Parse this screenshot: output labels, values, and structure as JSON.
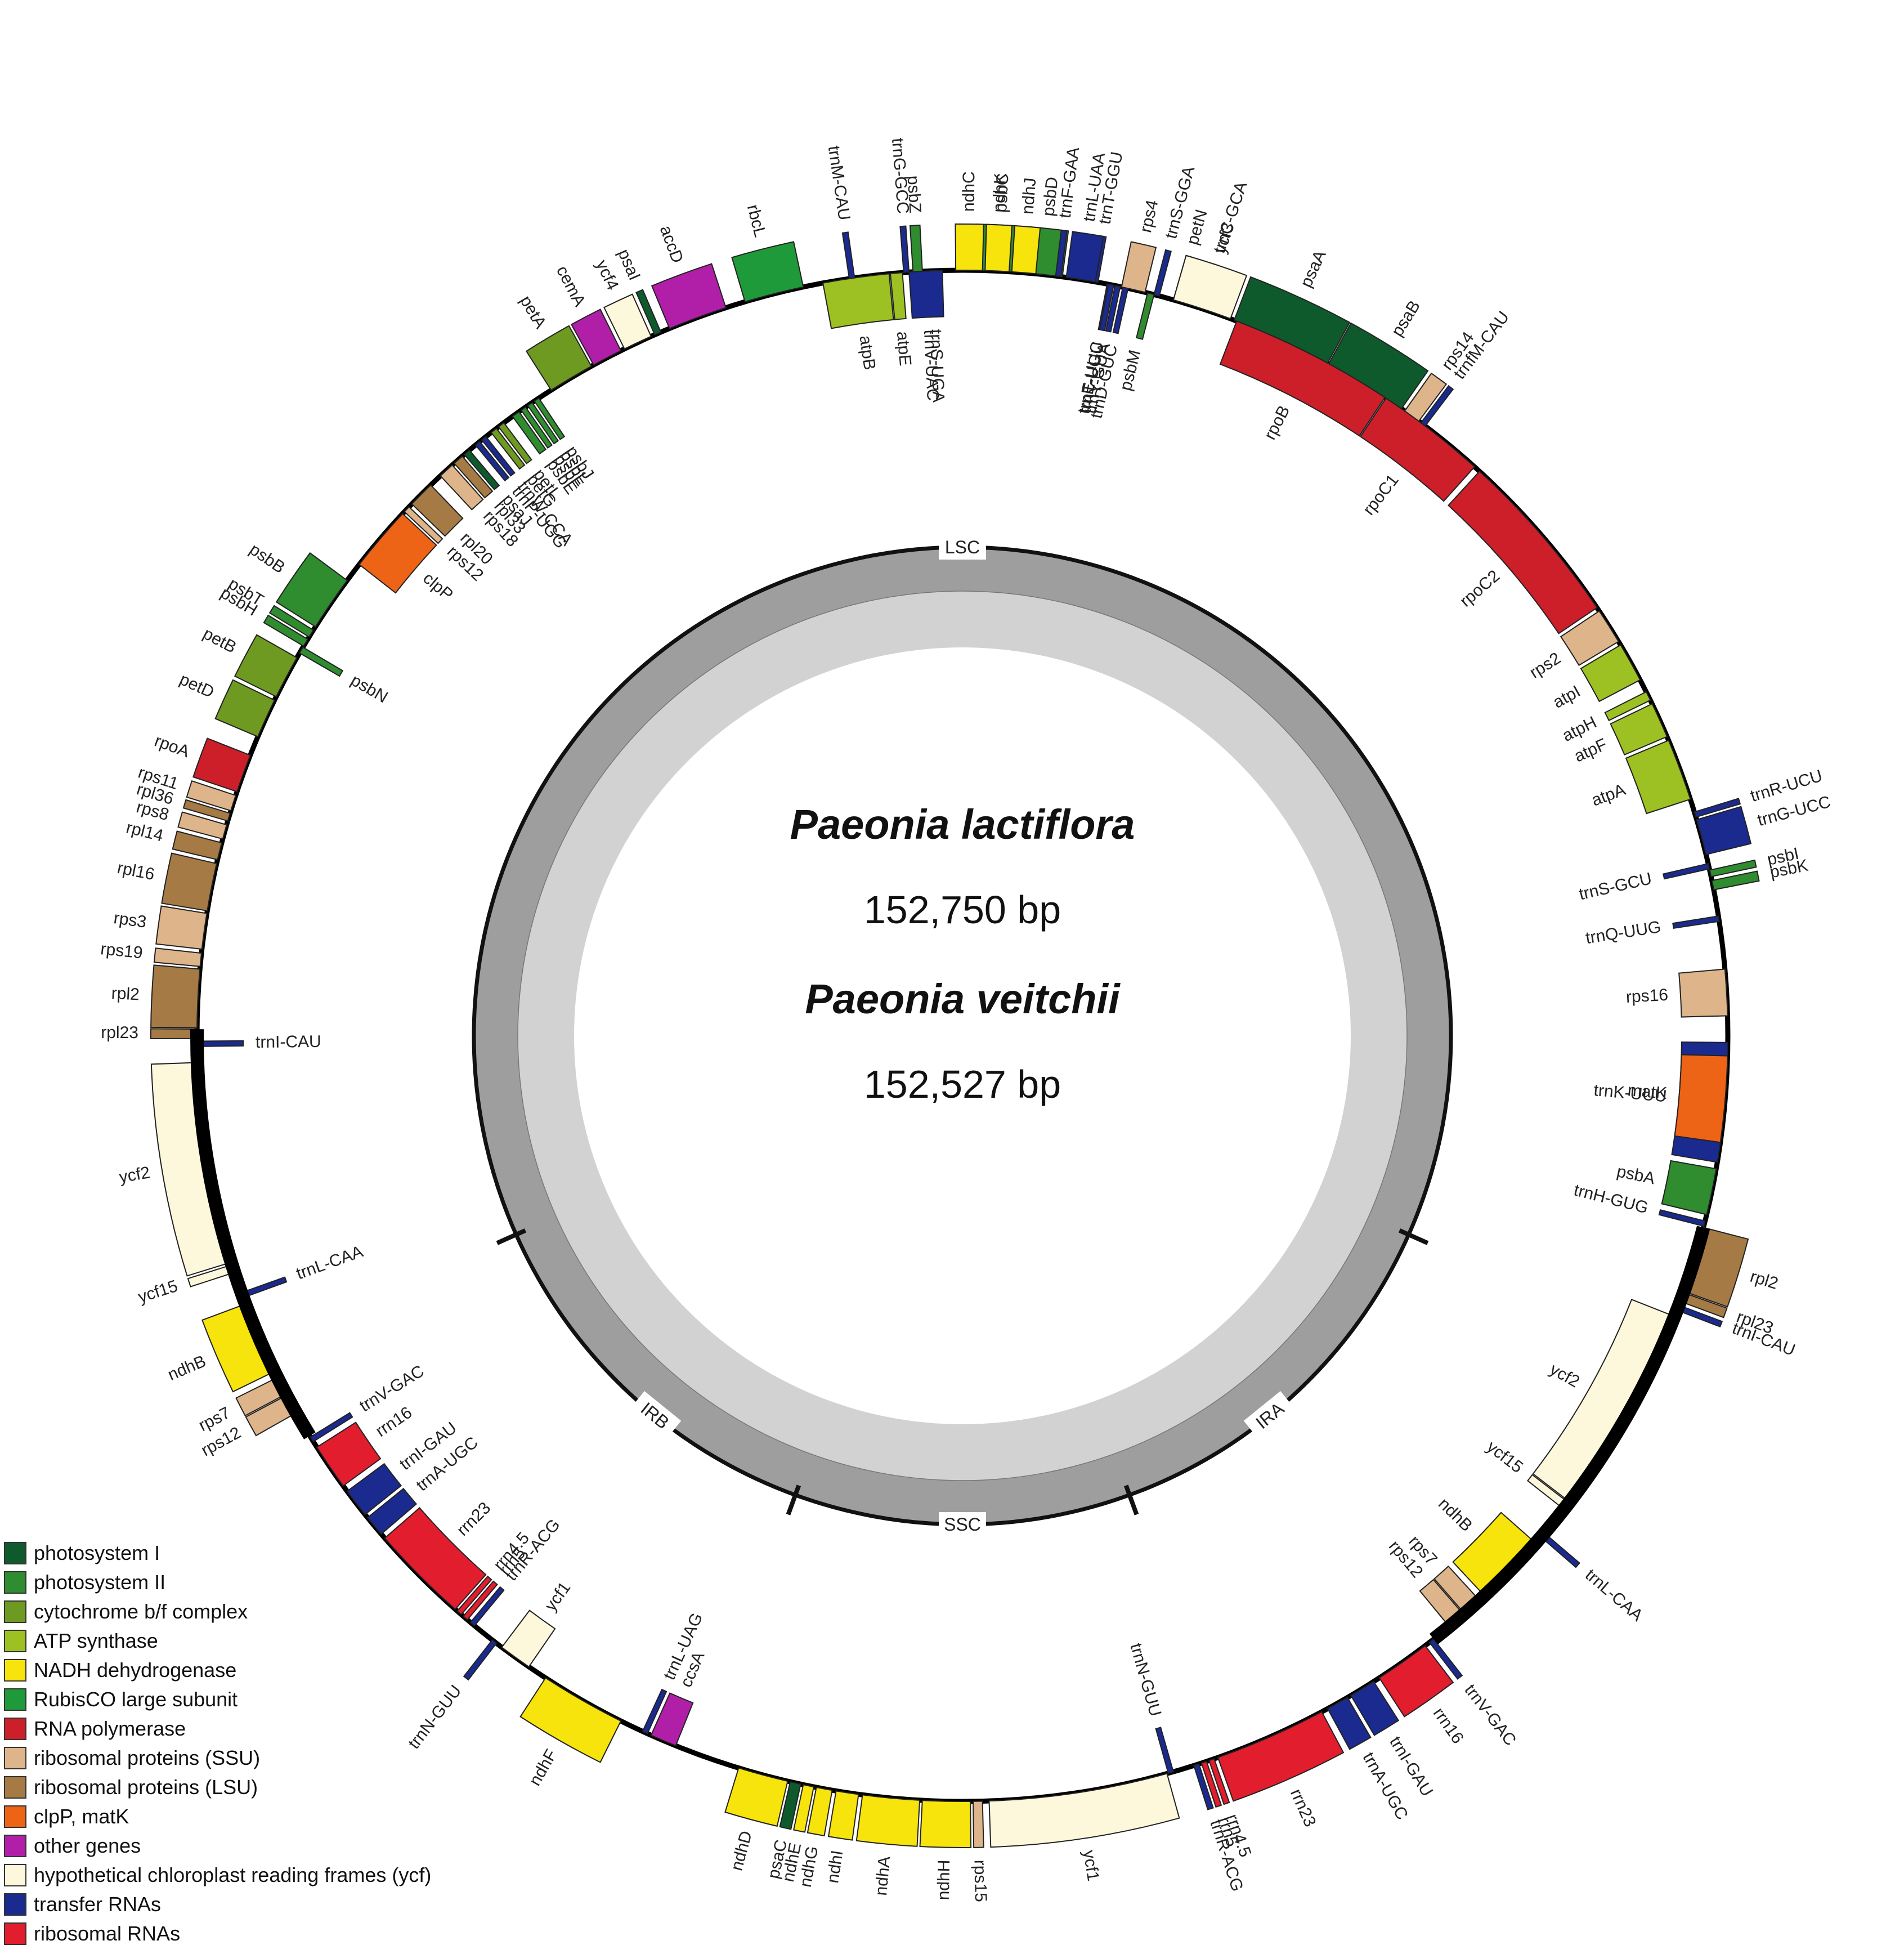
{
  "map": {
    "title_primary": "Paeonia lactiflora",
    "size_primary": "152,750 bp",
    "title_secondary": "Paeonia veitchii",
    "size_secondary": "152,527 bp"
  },
  "regions": [
    {
      "label": "LSC",
      "angle": 0
    },
    {
      "label": "IRA",
      "angle": 141
    },
    {
      "label": "SSC",
      "angle": 180
    },
    {
      "label": "IRB",
      "angle": 219
    }
  ],
  "categories": {
    "psI": {
      "name": "photosystem I",
      "color": "#0e5a2c"
    },
    "psII": {
      "name": "photosystem II",
      "color": "#2f8c2f"
    },
    "cyt": {
      "name": "cytochrome b/f complex",
      "color": "#6e9a22"
    },
    "atp": {
      "name": "ATP synthase",
      "color": "#9dc022"
    },
    "ndh": {
      "name": "NADH dehydrogenase",
      "color": "#f6e40c"
    },
    "rbc": {
      "name": "RubisCO large subunit",
      "color": "#1f9a3a"
    },
    "rpo": {
      "name": "RNA polymerase",
      "color": "#cc1f2a"
    },
    "ssu": {
      "name": "ribosomal proteins (SSU)",
      "color": "#deb48a"
    },
    "lsu": {
      "name": "ribosomal proteins (LSU)",
      "color": "#a57a45"
    },
    "clp": {
      "name": "clpP, matK",
      "color": "#ee6417"
    },
    "other": {
      "name": "other genes",
      "color": "#b11fa8"
    },
    "ycf": {
      "name": "hypothetical chloroplast reading frames (ycf)",
      "color": "#fdf7dc"
    },
    "trna": {
      "name": "transfer RNAs",
      "color": "#1a2a8f"
    },
    "rrna": {
      "name": "ribosomal RNAs",
      "color": "#e11d2e"
    }
  },
  "legend_order": [
    "psI",
    "psII",
    "cyt",
    "atp",
    "ndh",
    "rbc",
    "rpo",
    "ssu",
    "lsu",
    "clp",
    "other",
    "ycf",
    "trna",
    "rrna"
  ],
  "genes": [
    {
      "name": "trnG-GCC",
      "cat": "trna",
      "start": 355.6,
      "end": 356.0,
      "out": true
    },
    {
      "name": "psbZ",
      "cat": "psII",
      "start": 356.3,
      "end": 357.0,
      "out": true
    },
    {
      "name": "trnS-UGA",
      "cat": "trna",
      "start": 357.5,
      "end": 358.0,
      "out": false
    },
    {
      "name": "psbC",
      "cat": "psII",
      "start": 1.0,
      "end": 4.5,
      "out": true
    },
    {
      "name": "psbD",
      "cat": "psII",
      "start": 4.6,
      "end": 7.5,
      "out": true
    },
    {
      "name": "trnT-GGU",
      "cat": "trna",
      "start": 9.8,
      "end": 10.2,
      "out": true
    },
    {
      "name": "trnE-UUC",
      "cat": "trna",
      "start": 10.9,
      "end": 11.3,
      "out": false
    },
    {
      "name": "trnY-GUA",
      "cat": "trna",
      "start": 11.5,
      "end": 11.9,
      "out": false
    },
    {
      "name": "trnD-GUC",
      "cat": "trna",
      "start": 12.1,
      "end": 12.5,
      "out": false
    },
    {
      "name": "psbM",
      "cat": "psII",
      "start": 14.0,
      "end": 14.5,
      "out": false
    },
    {
      "name": "petN",
      "cat": "cyt",
      "start": 16.0,
      "end": 16.5,
      "out": true
    },
    {
      "name": "trnC-GCA",
      "cat": "trna",
      "start": 18.0,
      "end": 18.4,
      "out": true
    },
    {
      "name": "rpoB",
      "cat": "rpo",
      "start": 21.0,
      "end": 33.5,
      "out": false
    },
    {
      "name": "rpoC1",
      "cat": "rpo",
      "start": 33.6,
      "end": 42.0,
      "out": false
    },
    {
      "name": "rpoC2",
      "cat": "rpo",
      "start": 42.5,
      "end": 56.0,
      "out": false
    },
    {
      "name": "rps2",
      "cat": "ssu",
      "start": 56.3,
      "end": 59.0,
      "out": false
    },
    {
      "name": "atpI",
      "cat": "atp",
      "start": 59.3,
      "end": 62.3,
      "out": false
    },
    {
      "name": "atpH",
      "cat": "atp",
      "start": 63.3,
      "end": 64.0,
      "out": false
    },
    {
      "name": "atpF",
      "cat": "atp",
      "start": 64.3,
      "end": 67.0,
      "out": false
    },
    {
      "name": "atpA",
      "cat": "atp",
      "start": 67.3,
      "end": 72.0,
      "out": false
    },
    {
      "name": "trnR-UCU",
      "cat": "trna",
      "start": 73.0,
      "end": 73.4,
      "out": true
    },
    {
      "name": "trnG-UCC",
      "cat": "trna",
      "start": 73.6,
      "end": 76.3,
      "out": true
    },
    {
      "name": "psbI",
      "cat": "psII",
      "start": 77.5,
      "end": 78.0,
      "out": true
    },
    {
      "name": "psbK",
      "cat": "psII",
      "start": 78.3,
      "end": 79.0,
      "out": true
    },
    {
      "name": "trnS-GCU",
      "cat": "trna",
      "start": 77.0,
      "end": 77.4,
      "out": false
    },
    {
      "name": "trnQ-UUG",
      "cat": "trna",
      "start": 81.0,
      "end": 81.4,
      "out": false
    },
    {
      "name": "rps16",
      "cat": "ssu",
      "start": 85.0,
      "end": 88.5,
      "out": false
    },
    {
      "name": "trnK-UUU",
      "cat": "trna",
      "start": 90.5,
      "end": 99.5,
      "out": false
    },
    {
      "name": "matK",
      "cat": "clp",
      "start": 91.5,
      "end": 98.0,
      "out": false
    },
    {
      "name": "psbA",
      "cat": "psII",
      "start": 100.0,
      "end": 103.5,
      "out": false
    },
    {
      "name": "trnH-GUG",
      "cat": "trna",
      "start": 104.0,
      "end": 104.4,
      "out": false
    },
    {
      "name": "rpl2",
      "cat": "lsu",
      "start": 104.5,
      "end": 109.5,
      "out": true
    },
    {
      "name": "rpl23",
      "cat": "lsu",
      "start": 109.6,
      "end": 110.3,
      "out": true
    },
    {
      "name": "trnI-CAU",
      "cat": "trna",
      "start": 110.6,
      "end": 111.0,
      "out": true
    },
    {
      "name": "ycf2",
      "cat": "ycf",
      "start": 111.5,
      "end": 127.5,
      "out": false
    },
    {
      "name": "ycf15",
      "cat": "ycf",
      "start": 127.6,
      "end": 128.2,
      "out": false
    },
    {
      "name": "trnL-CAA",
      "cat": "trna",
      "start": 130.5,
      "end": 130.9,
      "out": true
    },
    {
      "name": "ndhB",
      "cat": "ndh",
      "start": 131.5,
      "end": 137.0,
      "out": false
    },
    {
      "name": "rps7",
      "cat": "ssu",
      "start": 137.5,
      "end": 139.0,
      "out": false
    },
    {
      "name": "rps12",
      "cat": "ssu",
      "start": 139.1,
      "end": 140.5,
      "out": false
    },
    {
      "name": "trnV-GAC",
      "cat": "trna",
      "start": 142.0,
      "end": 142.4,
      "out": true
    },
    {
      "name": "rrn16",
      "cat": "rrna",
      "start": 142.8,
      "end": 147.0,
      "out": true
    },
    {
      "name": "trnI-GAU",
      "cat": "trna",
      "start": 147.5,
      "end": 149.5,
      "out": true
    },
    {
      "name": "trnA-UGC",
      "cat": "trna",
      "start": 149.8,
      "end": 151.5,
      "out": true
    },
    {
      "name": "rrn23",
      "cat": "rrna",
      "start": 152.0,
      "end": 160.5,
      "out": true
    },
    {
      "name": "rrn4.5",
      "cat": "rrna",
      "start": 160.8,
      "end": 161.2,
      "out": true
    },
    {
      "name": "rrn5",
      "cat": "rrna",
      "start": 161.4,
      "end": 161.8,
      "out": true
    },
    {
      "name": "trnR-ACG",
      "cat": "trna",
      "start": 162.0,
      "end": 162.4,
      "out": true
    },
    {
      "name": "trnN-GUU",
      "cat": "trna",
      "start": 164.0,
      "end": 164.4,
      "out": false
    },
    {
      "name": "ycf1",
      "cat": "ycf",
      "start": 164.5,
      "end": 178.0,
      "out": true
    },
    {
      "name": "rps15",
      "cat": "ssu",
      "start": 178.5,
      "end": 179.2,
      "out": true
    },
    {
      "name": "ndhH",
      "cat": "ndh",
      "start": 179.4,
      "end": 183.0,
      "out": true
    },
    {
      "name": "ndhA",
      "cat": "ndh",
      "start": 183.2,
      "end": 187.5,
      "out": true
    },
    {
      "name": "ndhI",
      "cat": "ndh",
      "start": 187.8,
      "end": 189.5,
      "out": true
    },
    {
      "name": "ndhG",
      "cat": "ndh",
      "start": 189.8,
      "end": 191.0,
      "out": true
    },
    {
      "name": "ndhE",
      "cat": "ndh",
      "start": 191.2,
      "end": 192.0,
      "out": true
    },
    {
      "name": "psaC",
      "cat": "psI",
      "start": 192.2,
      "end": 193.0,
      "out": true
    },
    {
      "name": "ndhD",
      "cat": "ndh",
      "start": 193.2,
      "end": 197.0,
      "out": true
    },
    {
      "name": "ccsA",
      "cat": "other",
      "start": 202.0,
      "end": 204.0,
      "out": false
    },
    {
      "name": "trnL-UAG",
      "cat": "trna",
      "start": 204.3,
      "end": 204.7,
      "out": false
    },
    {
      "name": "ndhF",
      "cat": "ndh",
      "start": 206.5,
      "end": 213.0,
      "out": true
    },
    {
      "name": "ycf1",
      "cat": "ycf",
      "start": 214.5,
      "end": 217.0,
      "out": false
    },
    {
      "name": "trnN-GUU",
      "cat": "trna",
      "start": 217.5,
      "end": 217.9,
      "out": true
    },
    {
      "name": "trnR-ACG",
      "cat": "trna",
      "start": 219.6,
      "end": 220.0,
      "out": false
    },
    {
      "name": "rrn5",
      "cat": "rrna",
      "start": 220.3,
      "end": 220.7,
      "out": false
    },
    {
      "name": "rrn4.5",
      "cat": "rrna",
      "start": 220.9,
      "end": 221.3,
      "out": false
    },
    {
      "name": "rrn23",
      "cat": "rrna",
      "start": 221.5,
      "end": 229.0,
      "out": false
    },
    {
      "name": "trnA-UGC",
      "cat": "trna",
      "start": 229.4,
      "end": 231.0,
      "out": false
    },
    {
      "name": "trnI-GAU",
      "cat": "trna",
      "start": 231.3,
      "end": 233.5,
      "out": false
    },
    {
      "name": "rrn16",
      "cat": "rrna",
      "start": 234.0,
      "end": 237.5,
      "out": false
    },
    {
      "name": "trnV-GAC",
      "cat": "trna",
      "start": 238.0,
      "end": 238.4,
      "out": false
    },
    {
      "name": "rps12",
      "cat": "ssu",
      "start": 240.5,
      "end": 242.0,
      "out": true
    },
    {
      "name": "rps7",
      "cat": "ssu",
      "start": 242.1,
      "end": 243.5,
      "out": true
    },
    {
      "name": "ndhB",
      "cat": "ndh",
      "start": 244.0,
      "end": 249.5,
      "out": true
    },
    {
      "name": "trnL-CAA",
      "cat": "trna",
      "start": 250.0,
      "end": 250.4,
      "out": false
    },
    {
      "name": "ycf15",
      "cat": "ycf",
      "start": 252.0,
      "end": 252.6,
      "out": true
    },
    {
      "name": "ycf2",
      "cat": "ycf",
      "start": 252.8,
      "end": 268.0,
      "out": true
    },
    {
      "name": "trnI-CAU",
      "cat": "trna",
      "start": 269.2,
      "end": 269.6,
      "out": false
    },
    {
      "name": "rpl23",
      "cat": "lsu",
      "start": 269.8,
      "end": 270.5,
      "out": true
    },
    {
      "name": "rpl2",
      "cat": "lsu",
      "start": 270.6,
      "end": 275.0,
      "out": true
    },
    {
      "name": "rps19",
      "cat": "ssu",
      "start": 275.2,
      "end": 276.2,
      "out": true
    },
    {
      "name": "rps3",
      "cat": "ssu",
      "start": 276.5,
      "end": 279.2,
      "out": true
    },
    {
      "name": "rpl16",
      "cat": "lsu",
      "start": 279.4,
      "end": 283.0,
      "out": true
    },
    {
      "name": "rpl14",
      "cat": "lsu",
      "start": 283.3,
      "end": 284.6,
      "out": true
    },
    {
      "name": "rps8",
      "cat": "ssu",
      "start": 284.9,
      "end": 286.0,
      "out": true
    },
    {
      "name": "rpl36",
      "cat": "lsu",
      "start": 286.3,
      "end": 286.9,
      "out": true
    },
    {
      "name": "rps11",
      "cat": "ssu",
      "start": 287.1,
      "end": 288.3,
      "out": true
    },
    {
      "name": "rpoA",
      "cat": "rpo",
      "start": 288.6,
      "end": 291.5,
      "out": true
    },
    {
      "name": "petD",
      "cat": "cyt",
      "start": 293.0,
      "end": 296.0,
      "out": true
    },
    {
      "name": "petB",
      "cat": "cyt",
      "start": 296.3,
      "end": 299.6,
      "out": true
    },
    {
      "name": "psbN",
      "cat": "psII",
      "start": 300.0,
      "end": 300.5,
      "out": false
    },
    {
      "name": "psbH",
      "cat": "psII",
      "start": 300.6,
      "end": 301.2,
      "out": true
    },
    {
      "name": "psbT",
      "cat": "psII",
      "start": 301.4,
      "end": 302.0,
      "out": true
    },
    {
      "name": "psbB",
      "cat": "psII",
      "start": 302.3,
      "end": 306.5,
      "out": true
    },
    {
      "name": "clpP",
      "cat": "clp",
      "start": 308.0,
      "end": 313.0,
      "out": false
    },
    {
      "name": "rps12",
      "cat": "ssu",
      "start": 313.2,
      "end": 313.7,
      "out": false
    },
    {
      "name": "rpl20",
      "cat": "lsu",
      "start": 314.0,
      "end": 316.0,
      "out": false
    },
    {
      "name": "rps18",
      "cat": "ssu",
      "start": 317.0,
      "end": 318.2,
      "out": false
    },
    {
      "name": "rpl33",
      "cat": "lsu",
      "start": 318.4,
      "end": 319.2,
      "out": false
    },
    {
      "name": "psaJ",
      "cat": "psI",
      "start": 319.4,
      "end": 319.9,
      "out": false
    },
    {
      "name": "trnP-UGG",
      "cat": "trna",
      "start": 320.5,
      "end": 320.9,
      "out": false
    },
    {
      "name": "trnW-CCA",
      "cat": "trna",
      "start": 321.1,
      "end": 321.5,
      "out": false
    },
    {
      "name": "petG",
      "cat": "cyt",
      "start": 322.0,
      "end": 322.5,
      "out": false
    },
    {
      "name": "petL",
      "cat": "cyt",
      "start": 322.7,
      "end": 323.2,
      "out": false
    },
    {
      "name": "psbE",
      "cat": "psII",
      "start": 324.0,
      "end": 324.6,
      "out": false
    },
    {
      "name": "psbF",
      "cat": "psII",
      "start": 324.8,
      "end": 325.2,
      "out": false
    },
    {
      "name": "psbL",
      "cat": "psII",
      "start": 325.4,
      "end": 325.8,
      "out": false
    },
    {
      "name": "psbJ",
      "cat": "psII",
      "start": 326.0,
      "end": 326.4,
      "out": false
    },
    {
      "name": "petA",
      "cat": "cyt",
      "start": 327.5,
      "end": 331.0,
      "out": true
    },
    {
      "name": "cemA",
      "cat": "other",
      "start": 331.2,
      "end": 333.5,
      "out": true
    },
    {
      "name": "ycf4",
      "cat": "ycf",
      "start": 333.8,
      "end": 336.0,
      "out": true
    },
    {
      "name": "psaI",
      "cat": "psI",
      "start": 336.3,
      "end": 336.8,
      "out": true
    },
    {
      "name": "accD",
      "cat": "other",
      "start": 337.5,
      "end": 342.0,
      "out": true
    },
    {
      "name": "rbcL",
      "cat": "rbc",
      "start": 343.5,
      "end": 348.0,
      "out": true
    },
    {
      "name": "atpB",
      "cat": "atp",
      "start": 349.5,
      "end": 354.5,
      "out": false
    },
    {
      "name": "atpE",
      "cat": "atp",
      "start": 354.6,
      "end": 355.5,
      "out": false
    },
    {
      "name": "trnM-CAU",
      "cat": "trna",
      "start": 351.5,
      "end": 351.9,
      "out": true
    },
    {
      "name": "trnV-UAC",
      "cat": "trna",
      "start": 356.0,
      "end": 358.5,
      "out": false
    },
    {
      "name": "ndhC",
      "cat": "ndh",
      "start": 359.5,
      "end": 361.5,
      "out": true
    },
    {
      "name": "ndhK",
      "cat": "ndh",
      "start": 361.7,
      "end": 363.5,
      "out": true
    },
    {
      "name": "ndhJ",
      "cat": "ndh",
      "start": 363.7,
      "end": 365.5,
      "out": true
    },
    {
      "name": "trnF-GAA",
      "cat": "trna",
      "start": 367.0,
      "end": 367.4,
      "out": true
    },
    {
      "name": "trnL-UAA",
      "cat": "trna",
      "start": 367.8,
      "end": 370.0,
      "out": true
    },
    {
      "name": "trnT-UGU",
      "cat": "trna",
      "start": 371.0,
      "end": 371.4,
      "out": false
    },
    {
      "name": "rps4",
      "cat": "ssu",
      "start": 372.0,
      "end": 373.8,
      "out": true
    },
    {
      "name": "trnS-GGA",
      "cat": "trna",
      "start": 374.5,
      "end": 374.9,
      "out": true
    },
    {
      "name": "ycf3",
      "cat": "ycf",
      "start": 376.0,
      "end": 380.5,
      "out": true
    },
    {
      "name": "psaA",
      "cat": "psI",
      "start": 380.8,
      "end": 388.5,
      "out": true
    },
    {
      "name": "psaB",
      "cat": "psI",
      "start": 388.6,
      "end": 395.0,
      "out": true
    },
    {
      "name": "rps14",
      "cat": "ssu",
      "start": 395.3,
      "end": 396.6,
      "out": true
    },
    {
      "name": "trnfM-CAU",
      "cat": "trna",
      "start": 396.8,
      "end": 397.2,
      "out": true
    }
  ]
}
